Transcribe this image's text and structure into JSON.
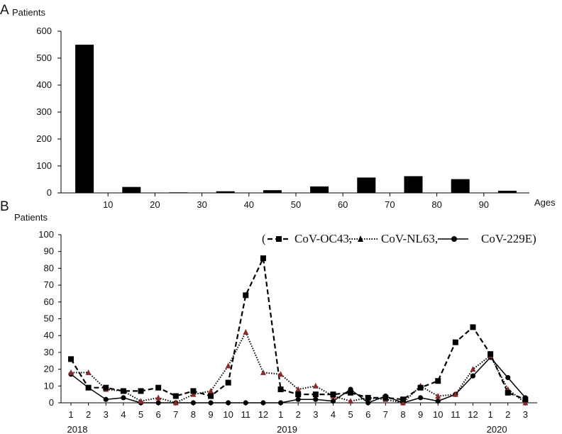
{
  "chart_data": [
    {
      "type": "bar",
      "panel_label": "A",
      "ylabel": "Patients",
      "xlabel": "Ages",
      "ylim": [
        0,
        600
      ],
      "yticks": [
        0,
        100,
        200,
        300,
        400,
        500,
        600
      ],
      "tick_labels": [
        "10",
        "20",
        "30",
        "40",
        "50",
        "60",
        "70",
        "80",
        "90"
      ],
      "values": [
        550,
        22,
        2,
        6,
        10,
        24,
        57,
        62,
        51,
        8
      ],
      "bar_color": "#000000"
    },
    {
      "type": "line",
      "panel_label": "B",
      "ylabel": "Patients",
      "ylim": [
        0,
        100
      ],
      "yticks": [
        0,
        10,
        20,
        30,
        40,
        50,
        60,
        70,
        80,
        90,
        100
      ],
      "x": [
        "1",
        "2",
        "3",
        "4",
        "5",
        "6",
        "7",
        "8",
        "9",
        "10",
        "11",
        "12",
        "1",
        "2",
        "3",
        "4",
        "5",
        "6",
        "7",
        "8",
        "9",
        "10",
        "11",
        "12",
        "1",
        "2",
        "3"
      ],
      "years": [
        {
          "label": "2018",
          "index": 0
        },
        {
          "label": "2019",
          "index": 12
        },
        {
          "label": "2020",
          "index": 24
        }
      ],
      "legend_text": [
        "(",
        "CoV-OC43,",
        "CoV-NL63,",
        "CoV-229E)"
      ],
      "legend_position": "top-right",
      "series": [
        {
          "name": "CoV-OC43",
          "marker": "square",
          "line": "dashed",
          "color": "#000000",
          "values": [
            26,
            9,
            9,
            7,
            7,
            9,
            4,
            7,
            4,
            12,
            64,
            86,
            8,
            5,
            5,
            5,
            6,
            3,
            3,
            2,
            9,
            13,
            36,
            45,
            29,
            6,
            2
          ]
        },
        {
          "name": "CoV-NL63",
          "marker": "triangle",
          "line": "dotted",
          "color": "#8b2a2a",
          "values": [
            18,
            18,
            8,
            7,
            1,
            3,
            0,
            5,
            7,
            22,
            42,
            18,
            17,
            8,
            10,
            4,
            1,
            3,
            2,
            0,
            10,
            4,
            5,
            20,
            28,
            8,
            0
          ]
        },
        {
          "name": "CoV-229E",
          "marker": "circle",
          "line": "solid",
          "color": "#000000",
          "values": [
            17,
            9,
            2,
            3,
            0,
            0,
            0,
            0,
            0,
            0,
            0,
            0,
            0,
            2,
            2,
            1,
            8,
            0,
            4,
            0,
            3,
            1,
            5,
            16,
            27,
            15,
            3
          ]
        }
      ]
    }
  ]
}
